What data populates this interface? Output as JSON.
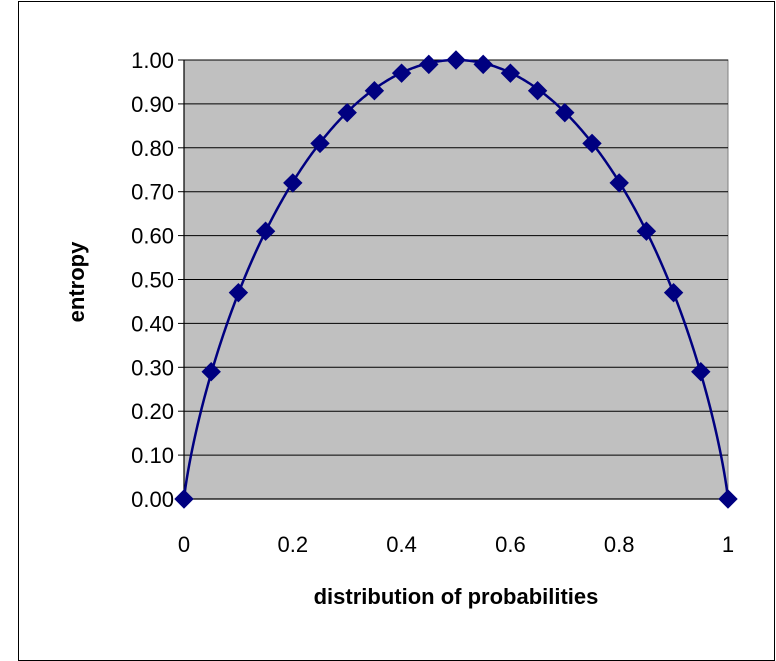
{
  "chart_data": {
    "type": "scatter",
    "title": "",
    "xlabel": "distribution of probabilities",
    "ylabel": "entropy",
    "xlim": [
      0,
      1
    ],
    "ylim": [
      0,
      1
    ],
    "x_ticks": [
      "0",
      "0.2",
      "0.4",
      "0.6",
      "0.8",
      "1"
    ],
    "x_tick_values": [
      0,
      0.2,
      0.4,
      0.6,
      0.8,
      1
    ],
    "y_ticks": [
      "0.00",
      "0.10",
      "0.20",
      "0.30",
      "0.40",
      "0.50",
      "0.60",
      "0.70",
      "0.80",
      "0.90",
      "1.00"
    ],
    "y_tick_values": [
      0,
      0.1,
      0.2,
      0.3,
      0.4,
      0.5,
      0.6,
      0.7,
      0.8,
      0.9,
      1.0
    ],
    "grid": "horizontal",
    "legend": "none",
    "marker": "diamond",
    "line": "smooth",
    "series": [
      {
        "x": [
          0,
          0.05,
          0.1,
          0.15,
          0.2,
          0.25,
          0.3,
          0.35,
          0.4,
          0.45,
          0.5,
          0.55,
          0.6,
          0.65,
          0.7,
          0.75,
          0.8,
          0.85,
          0.9,
          0.95,
          1
        ],
        "y": [
          0,
          0.29,
          0.47,
          0.61,
          0.72,
          0.81,
          0.88,
          0.93,
          0.97,
          0.99,
          1.0,
          0.99,
          0.97,
          0.93,
          0.88,
          0.81,
          0.72,
          0.61,
          0.47,
          0.29,
          0
        ]
      }
    ],
    "colors": {
      "plot_background": "#c0c0c0",
      "series": "#000080",
      "gridline": "#000000"
    }
  }
}
